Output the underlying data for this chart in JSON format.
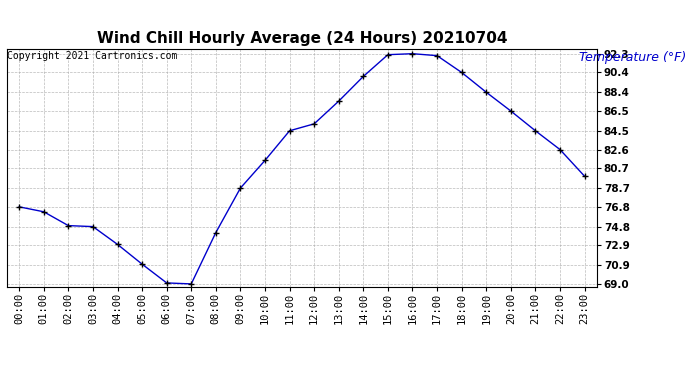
{
  "title": "Wind Chill Hourly Average (24 Hours) 20210704",
  "copyright_text": "Copyright 2021 Cartronics.com",
  "ylabel": "Temperature (°F)",
  "hours": [
    "00:00",
    "01:00",
    "02:00",
    "03:00",
    "04:00",
    "05:00",
    "06:00",
    "07:00",
    "08:00",
    "09:00",
    "10:00",
    "11:00",
    "12:00",
    "13:00",
    "14:00",
    "15:00",
    "16:00",
    "17:00",
    "18:00",
    "19:00",
    "20:00",
    "21:00",
    "22:00",
    "23:00"
  ],
  "values": [
    76.8,
    76.3,
    74.9,
    74.8,
    73.0,
    71.0,
    69.1,
    69.0,
    74.2,
    78.7,
    81.5,
    84.5,
    85.2,
    87.5,
    90.0,
    92.2,
    92.3,
    92.1,
    90.4,
    88.4,
    86.5,
    84.5,
    82.6,
    79.9
  ],
  "ylim_min": 69.0,
  "ylim_max": 92.3,
  "yticks": [
    69.0,
    70.9,
    72.9,
    74.8,
    76.8,
    78.7,
    80.7,
    82.6,
    84.5,
    86.5,
    88.4,
    90.4,
    92.3
  ],
  "line_color": "#0000cc",
  "marker_color": "#000000",
  "grid_color": "#aaaaaa",
  "background_color": "#ffffff",
  "title_fontsize": 11,
  "ylabel_color": "#0000cc",
  "ylabel_fontsize": 9,
  "copyright_fontsize": 7,
  "tick_fontsize": 7.5
}
